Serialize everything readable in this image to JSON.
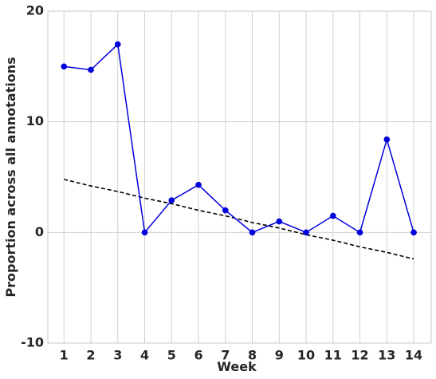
{
  "chart_data": {
    "type": "line",
    "title": "",
    "xlabel": "Week",
    "ylabel": "Proportion across all annotations",
    "x": [
      1,
      2,
      3,
      4,
      5,
      6,
      7,
      8,
      9,
      10,
      11,
      12,
      13,
      14
    ],
    "x_tick_labels": [
      "1",
      "2",
      "3",
      "4",
      "5",
      "6",
      "7",
      "8",
      "9",
      "10",
      "11",
      "12",
      "13",
      "14"
    ],
    "xlim": [
      0.4,
      14.65
    ],
    "ylim": [
      -10,
      20
    ],
    "y_ticks": [
      -10,
      0,
      10,
      20
    ],
    "y_tick_labels": [
      "-10",
      "0",
      "10",
      "20"
    ],
    "grid": true,
    "series": [
      {
        "style": "solid line with circle markers",
        "color": "#0000dd",
        "values": [
          15.0,
          14.7,
          17.0,
          0.0,
          2.9,
          4.3,
          2.0,
          0.0,
          1.0,
          0.0,
          1.5,
          0.0,
          8.4,
          0.0
        ]
      },
      {
        "style": "dashed trend line",
        "color": "#000000",
        "values": [
          4.8,
          4.2,
          3.7,
          3.1,
          2.6,
          2.0,
          1.5,
          0.9,
          0.4,
          -0.2,
          -0.7,
          -1.3,
          -1.8,
          -2.4
        ]
      }
    ]
  }
}
